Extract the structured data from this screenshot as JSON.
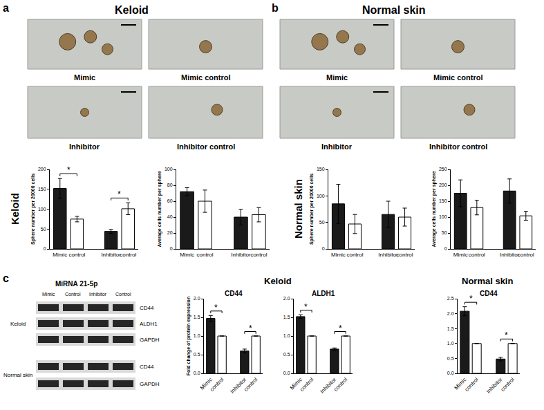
{
  "panels": [
    {
      "letter": "a",
      "title": "Keloid",
      "images": [
        "Mimic",
        "Mimic control",
        "Inhibitor",
        "Inhibitor control"
      ]
    },
    {
      "letter": "b",
      "title": "Normal skin",
      "images": [
        "Mimic",
        "Mimic control",
        "Inhibitor",
        "Inhibitor control"
      ]
    },
    {
      "letter": "c"
    }
  ],
  "row_labels": [
    "Keloid",
    "Normal skin"
  ],
  "blot": {
    "title": "MiRNA 21-5p",
    "lanes": [
      "Mimic",
      "Control",
      "Inhibitor",
      "Control"
    ],
    "groups": [
      {
        "name": "Keloid",
        "bands": [
          "CD44",
          "ALDH1",
          "GAPDH"
        ]
      },
      {
        "name": "Normal skin",
        "bands": [
          "CD44",
          "GAPDH"
        ]
      }
    ]
  },
  "c_titles": [
    "Keloid",
    "Normal skin"
  ],
  "chart_data": [
    {
      "type": "bar",
      "y_label": "Sphere number per 20000 cells",
      "categories": [
        "Mimic",
        "control",
        null,
        "Inhibitor",
        "control"
      ],
      "values": [
        152,
        75,
        null,
        44,
        101
      ],
      "errors": [
        25,
        7,
        null,
        5,
        15
      ],
      "colors": [
        "#1a1a1a",
        "#ffffff",
        null,
        "#1a1a1a",
        "#ffffff"
      ],
      "ylim": [
        0,
        200
      ],
      "yticks": [
        0,
        50,
        100,
        150,
        200
      ],
      "significance": [
        {
          "from": 0,
          "to": 1,
          "label": "*"
        },
        {
          "from": 3,
          "to": 4,
          "label": "*"
        }
      ]
    },
    {
      "type": "bar",
      "y_label": "Average cells number per sphere",
      "categories": [
        "Mimic",
        "control",
        null,
        "Inhibitor",
        "control"
      ],
      "values": [
        72,
        60,
        null,
        40,
        43
      ],
      "errors": [
        5,
        14,
        null,
        10,
        9
      ],
      "colors": [
        "#1a1a1a",
        "#ffffff",
        null,
        "#1a1a1a",
        "#ffffff"
      ],
      "ylim": [
        0,
        100
      ],
      "yticks": [
        0,
        20,
        40,
        60,
        80,
        100
      ],
      "significance": []
    },
    {
      "type": "bar",
      "y_label": "Sphere number per 20000 cells",
      "categories": [
        "Mimic",
        "control",
        null,
        "Inhibitor",
        "control"
      ],
      "values": [
        85,
        47,
        null,
        65,
        60
      ],
      "errors": [
        37,
        18,
        null,
        25,
        17
      ],
      "colors": [
        "#1a1a1a",
        "#ffffff",
        null,
        "#1a1a1a",
        "#ffffff"
      ],
      "ylim": [
        0,
        150
      ],
      "yticks": [
        0,
        50,
        100,
        150
      ],
      "significance": []
    },
    {
      "type": "bar",
      "y_label": "Average cells number per sphere",
      "categories": [
        "Mimic",
        "control",
        null,
        "Inhibitor",
        "control"
      ],
      "values": [
        175,
        130,
        null,
        182,
        104
      ],
      "errors": [
        42,
        23,
        null,
        38,
        14
      ],
      "colors": [
        "#1a1a1a",
        "#ffffff",
        null,
        "#1a1a1a",
        "#ffffff"
      ],
      "ylim": [
        0,
        250
      ],
      "yticks": [
        0,
        50,
        100,
        150,
        200,
        250
      ],
      "significance": []
    },
    {
      "type": "bar",
      "title": "CD44",
      "y_label": "Fold change of protein expression",
      "categories": [
        "Mimic",
        "control",
        null,
        "Inhibitor",
        "control"
      ],
      "values": [
        1.47,
        1.0,
        null,
        0.6,
        1.0
      ],
      "errors": [
        0.08,
        null,
        null,
        0.05,
        null
      ],
      "colors": [
        "#1a1a1a",
        "#ffffff",
        null,
        "#1a1a1a",
        "#ffffff"
      ],
      "ylim": [
        0,
        2.0
      ],
      "yticks": [
        {
          "value": 0,
          "label": "0.0"
        },
        0.5,
        {
          "value": 1,
          "label": "1.0"
        },
        1.5,
        {
          "value": 2,
          "label": "2.0"
        }
      ],
      "significance": [
        {
          "from": 0,
          "to": 1,
          "label": "*"
        },
        {
          "from": 3,
          "to": 4,
          "label": "*"
        }
      ]
    },
    {
      "type": "bar",
      "title": "ALDH1",
      "categories": [
        "Mimic",
        "control",
        null,
        "Inhibitor",
        "control"
      ],
      "values": [
        1.52,
        1.0,
        null,
        0.65,
        1.0
      ],
      "errors": [
        0.05,
        null,
        null,
        0.03,
        null
      ],
      "colors": [
        "#1a1a1a",
        "#ffffff",
        null,
        "#1a1a1a",
        "#ffffff"
      ],
      "ylim": [
        0,
        2.0
      ],
      "yticks": [
        {
          "value": 0,
          "label": "0.0"
        },
        0.5,
        {
          "value": 1,
          "label": "1.0"
        },
        1.5,
        {
          "value": 2,
          "label": "2.0"
        }
      ],
      "significance": [
        {
          "from": 0,
          "to": 1,
          "label": "*"
        },
        {
          "from": 3,
          "to": 4,
          "label": "*"
        }
      ]
    },
    {
      "type": "bar",
      "title": "CD44",
      "categories": [
        "Mimic",
        "control",
        null,
        "Inhibitor",
        "control"
      ],
      "values": [
        2.08,
        1.0,
        null,
        0.48,
        1.0
      ],
      "errors": [
        0.15,
        null,
        null,
        0.06,
        null
      ],
      "colors": [
        "#1a1a1a",
        "#ffffff",
        null,
        "#1a1a1a",
        "#ffffff"
      ],
      "ylim": [
        0,
        2.5
      ],
      "yticks": [
        {
          "value": 0,
          "label": "0.0"
        },
        0.5,
        {
          "value": 1,
          "label": "1.0"
        },
        1.5,
        {
          "value": 2,
          "label": "2.0"
        },
        2.5
      ],
      "significance": [
        {
          "from": 0,
          "to": 1,
          "label": "*"
        },
        {
          "from": 3,
          "to": 4,
          "label": "*"
        }
      ]
    }
  ]
}
